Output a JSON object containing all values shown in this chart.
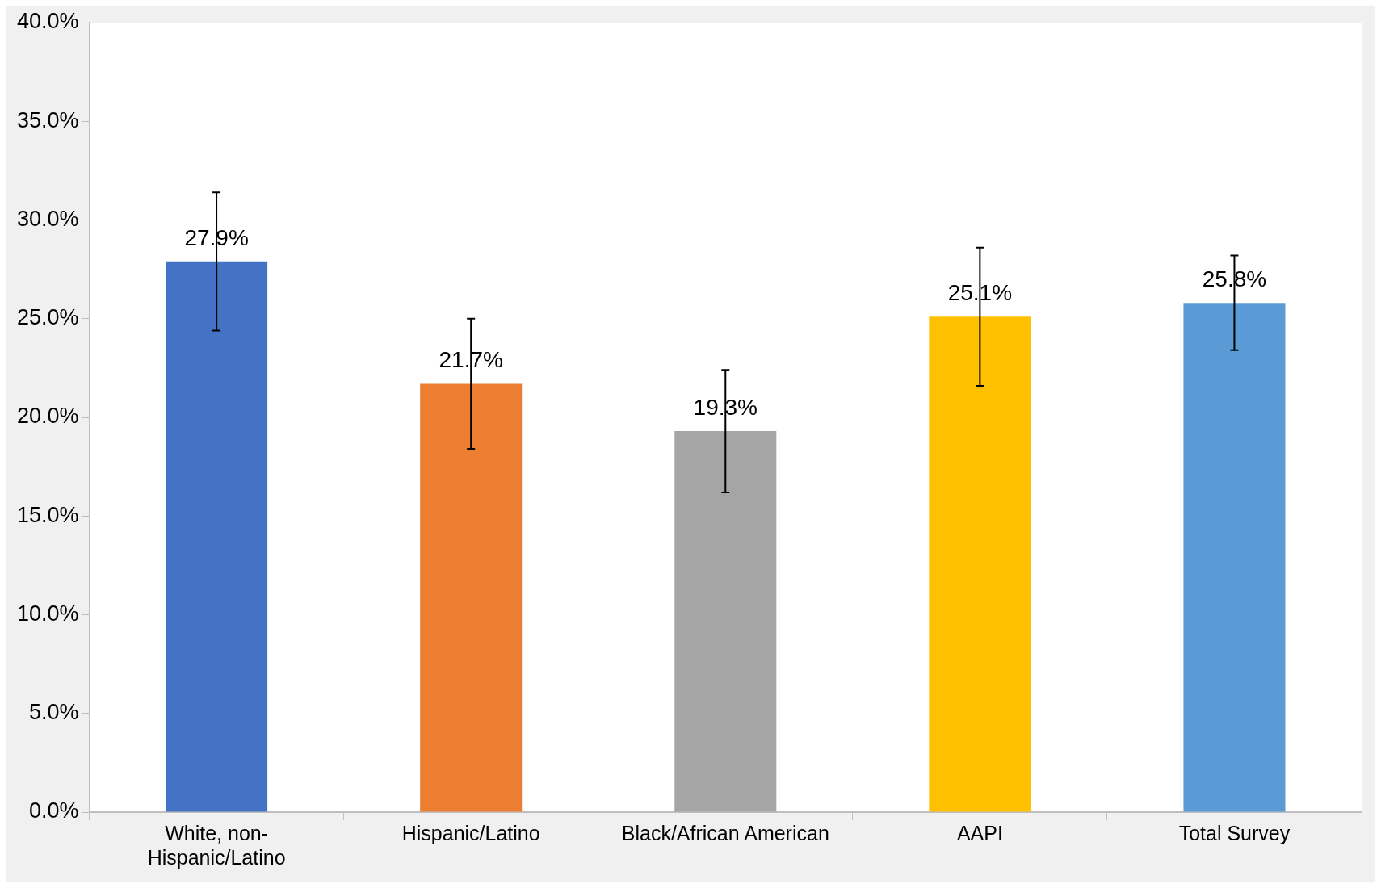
{
  "chart_data": {
    "type": "bar",
    "categories": [
      "White, non-Hispanic/Latino",
      "Hispanic/Latino",
      "Black/African American",
      "AAPI",
      "Total Survey"
    ],
    "values": [
      27.9,
      21.7,
      19.3,
      25.1,
      25.8
    ],
    "value_labels": [
      "27.9%",
      "21.7%",
      "19.3%",
      "25.1%",
      "25.8%"
    ],
    "errors": [
      3.5,
      3.3,
      3.1,
      3.5,
      2.4
    ],
    "colors": [
      "#4472c4",
      "#ed7d31",
      "#a5a5a5",
      "#ffc000",
      "#5b9bd5"
    ],
    "ylim": [
      0,
      40
    ],
    "yticks": [
      {
        "value": 0,
        "label": "0.0%"
      },
      {
        "value": 5,
        "label": "5.0%"
      },
      {
        "value": 10,
        "label": "10.0%"
      },
      {
        "value": 15,
        "label": "15.0%"
      },
      {
        "value": 20,
        "label": "20.0%"
      },
      {
        "value": 25,
        "label": "25.0%"
      },
      {
        "value": 30,
        "label": "30.0%"
      },
      {
        "value": 35,
        "label": "35.0%"
      },
      {
        "value": 40,
        "label": "40.0%"
      }
    ],
    "grid": false,
    "legend": false
  }
}
